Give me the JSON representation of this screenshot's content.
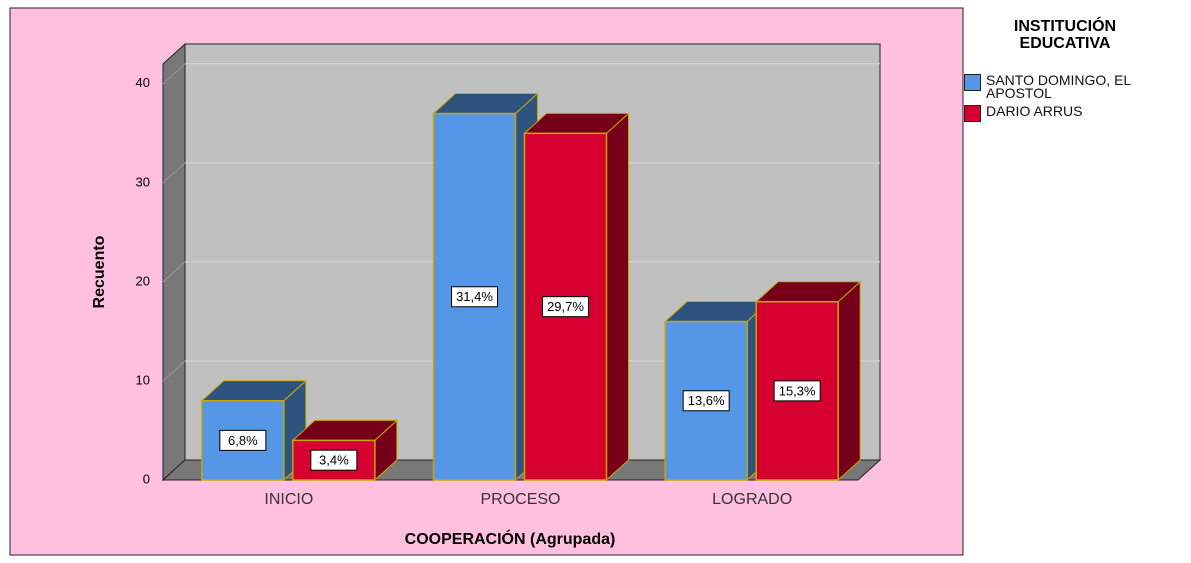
{
  "chart_data": {
    "type": "bar3d",
    "x_label": "COOPERACIÓN (Agrupada)",
    "y_label": "Recuento",
    "legend_title": "INSTITUCIÓN EDUCATIVA",
    "categories": [
      "INICIO",
      "PROCESO",
      "LOGRADO"
    ],
    "series": [
      {
        "name": "SANTO DOMINGO, EL APOSTOL",
        "color": "#5596e6",
        "values": [
          8,
          37,
          16
        ],
        "percent_labels": [
          "6,8%",
          "31,4%",
          "13,6%"
        ]
      },
      {
        "name": "DARIO ARRUS",
        "color": "#d60030",
        "values": [
          4,
          35,
          18
        ],
        "percent_labels": [
          "3,4%",
          "29,7%",
          "15,3%"
        ]
      }
    ],
    "ylim": [
      0,
      42
    ],
    "yticks": [
      0,
      10,
      20,
      30,
      40
    ],
    "grid": true
  }
}
